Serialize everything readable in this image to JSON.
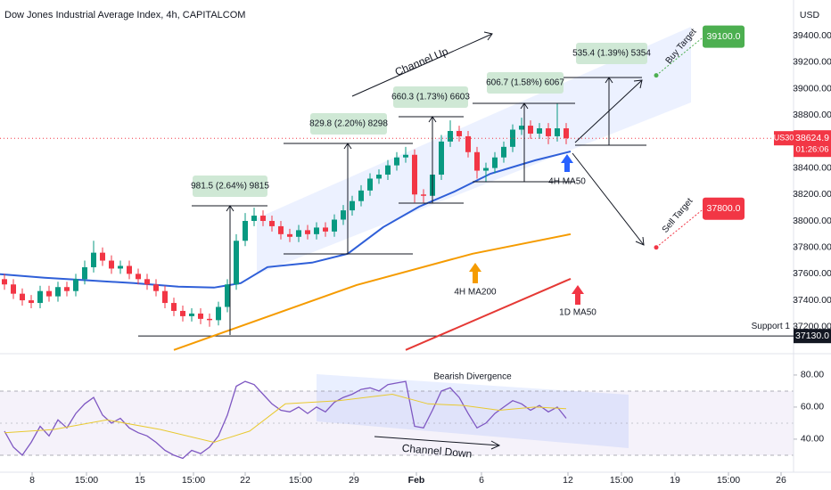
{
  "chart_data": [
    {
      "type": "candlestick",
      "title": "Dow Jones Industrial Average Index, 4h, CAPITALCOM",
      "currency": "USD",
      "symbol_tag": "US30",
      "countdown": "01:26:06",
      "up_color": "#089981",
      "down_color": "#f23645",
      "xlim": [
        0,
        89
      ],
      "xticks": [
        {
          "value": 3.6,
          "label": "8"
        },
        {
          "value": 9.7,
          "label": "15:00"
        },
        {
          "value": 15.7,
          "label": "15"
        },
        {
          "value": 21.7,
          "label": "15:00"
        },
        {
          "value": 27.5,
          "label": "22"
        },
        {
          "value": 33.7,
          "label": "15:00"
        },
        {
          "value": 39.7,
          "label": "29"
        },
        {
          "value": 46.7,
          "label": "Feb"
        },
        {
          "value": 54,
          "label": "6"
        },
        {
          "value": 63.7,
          "label": "12"
        },
        {
          "value": 69.7,
          "label": "15:00"
        },
        {
          "value": 75.7,
          "label": "19"
        },
        {
          "value": 81.7,
          "label": "15:00"
        },
        {
          "value": 87.6,
          "label": "26"
        }
      ],
      "ylim": [
        37010,
        39670
      ],
      "yticks": [
        {
          "value": 39400,
          "label": "39400.00"
        },
        {
          "value": 39200,
          "label": "39200.00"
        },
        {
          "value": 39000,
          "label": "39000.00"
        },
        {
          "value": 38800,
          "label": "38800.00"
        },
        {
          "value": 38600,
          "label": "38600.00"
        },
        {
          "value": 38400,
          "label": "38400.00"
        },
        {
          "value": 38200,
          "label": "38200.00"
        },
        {
          "value": 38000,
          "label": "38000.00"
        },
        {
          "value": 37800,
          "label": "37800.00"
        },
        {
          "value": 37600,
          "label": "37600.00"
        },
        {
          "value": 37400,
          "label": "37400.00"
        },
        {
          "value": 37200,
          "label": "37200.00"
        }
      ],
      "x": [
        0.5,
        1.5,
        2.5,
        3.5,
        4.5,
        5.5,
        6.5,
        7.5,
        8.5,
        9.5,
        10.5,
        11.5,
        12.5,
        13.5,
        14.5,
        15.5,
        16.5,
        17.5,
        18.5,
        19.5,
        20.5,
        21.5,
        22.5,
        23.5,
        24.5,
        25.5,
        26.5,
        27.5,
        28.5,
        29.5,
        30.5,
        31.5,
        32.5,
        33.5,
        34.5,
        35.5,
        36.5,
        37.5,
        38.5,
        39.5,
        40.5,
        41.5,
        42.5,
        43.5,
        44.5,
        45.5,
        46.5,
        47.5,
        48.5,
        49.5,
        50.5,
        51.5,
        52.5,
        53.5,
        54.5,
        55.5,
        56.5,
        57.5,
        58.5,
        59.5,
        60.5,
        61.5,
        62.5,
        63.5
      ],
      "open": [
        37560,
        37520,
        37450,
        37400,
        37380,
        37470,
        37430,
        37500,
        37470,
        37560,
        37650,
        37760,
        37700,
        37640,
        37660,
        37600,
        37560,
        37520,
        37470,
        37380,
        37320,
        37280,
        37300,
        37260,
        37250,
        37350,
        37520,
        37850,
        38000,
        38040,
        38000,
        37960,
        37900,
        37880,
        37930,
        37900,
        37950,
        37920,
        38010,
        38080,
        38150,
        38230,
        38320,
        38350,
        38420,
        38480,
        38500,
        38200,
        38190,
        38350,
        38600,
        38680,
        38640,
        38520,
        38380,
        38400,
        38480,
        38560,
        38690,
        38720,
        38660,
        38700,
        38640,
        38700
      ],
      "high": [
        37600,
        37560,
        37490,
        37440,
        37510,
        37510,
        37540,
        37540,
        37600,
        37700,
        37850,
        37800,
        37740,
        37700,
        37700,
        37640,
        37600,
        37560,
        37510,
        37420,
        37360,
        37340,
        37340,
        37300,
        37390,
        37560,
        37900,
        38060,
        38100,
        38080,
        38040,
        38000,
        37940,
        37970,
        37970,
        37990,
        37990,
        38050,
        38120,
        38190,
        38270,
        38360,
        38390,
        38460,
        38520,
        38560,
        38540,
        38240,
        38390,
        38650,
        38760,
        38720,
        38680,
        38560,
        38440,
        38520,
        38600,
        38730,
        38780,
        38760,
        38740,
        38740,
        38890,
        38740
      ],
      "low": [
        37480,
        37410,
        37360,
        37340,
        37340,
        37390,
        37390,
        37430,
        37430,
        37520,
        37610,
        37660,
        37600,
        37600,
        37560,
        37520,
        37480,
        37430,
        37340,
        37280,
        37240,
        37240,
        37220,
        37200,
        37210,
        37310,
        37480,
        37810,
        37960,
        37960,
        37920,
        37860,
        37840,
        37840,
        37860,
        37860,
        37880,
        37880,
        37970,
        38040,
        38110,
        38190,
        38280,
        38310,
        38380,
        38440,
        38140,
        38140,
        38150,
        38310,
        38560,
        38600,
        38480,
        38320,
        38300,
        38360,
        38440,
        38520,
        38650,
        38620,
        38620,
        38580,
        38600,
        38580
      ],
      "close": [
        37520,
        37450,
        37400,
        37380,
        37470,
        37430,
        37500,
        37470,
        37560,
        37650,
        37760,
        37700,
        37640,
        37660,
        37600,
        37560,
        37520,
        37470,
        37380,
        37320,
        37280,
        37300,
        37260,
        37250,
        37350,
        37520,
        37850,
        38000,
        38040,
        38000,
        37960,
        37900,
        37880,
        37930,
        37900,
        37950,
        37920,
        38010,
        38080,
        38150,
        38230,
        38320,
        38350,
        38420,
        38480,
        38500,
        38200,
        38190,
        38350,
        38600,
        38680,
        38640,
        38520,
        38380,
        38400,
        38480,
        38560,
        38690,
        38720,
        38660,
        38700,
        38640,
        38700,
        38624.9
      ],
      "overlays": [
        {
          "name": "4H MA50",
          "color": "#2f5fd8",
          "x": [
            0,
            5,
            10,
            15,
            20,
            24,
            27,
            30,
            35,
            39,
            43,
            47,
            51,
            55,
            60,
            64
          ],
          "values": [
            37597,
            37570,
            37550,
            37530,
            37503,
            37496,
            37530,
            37651,
            37685,
            37752,
            37954,
            38108,
            38223,
            38357,
            38458,
            38525
          ]
        },
        {
          "name": "4H MA200",
          "color": "#f59b00",
          "x": [
            19.5,
            40,
            53,
            64
          ],
          "values": [
            37025,
            37516,
            37752,
            37900
          ]
        },
        {
          "name": "1D MA50",
          "color": "#e53935",
          "x": [
            45.5,
            64
          ],
          "values": [
            37025,
            37563
          ]
        }
      ],
      "measurements": [
        "981.5 (2.64%) 9815",
        "829.8 (2.20%) 8298",
        "660.3 (1.73%) 6603",
        "606.7 (1.58%) 6067",
        "535.4 (1.39%) 5354"
      ],
      "annotations": [
        "Channel Up",
        "Buy Target",
        "Sell Target"
      ],
      "targets": [
        {
          "value": 39100,
          "label": "39100.0",
          "color": "#4caf50"
        },
        {
          "value": 37800,
          "label": "37800.0",
          "color": "#f23645"
        }
      ],
      "support": {
        "name": "Support 1",
        "value": 37130,
        "label": "37130.0"
      }
    },
    {
      "type": "line",
      "annotations": [
        "Bearish Divergence",
        "Channel Down"
      ],
      "ylim": [
        19.4,
        93.3
      ],
      "yticks": [
        {
          "value": 80,
          "label": "80.00"
        },
        {
          "value": 60,
          "label": "60.00"
        },
        {
          "value": 40,
          "label": "40.00"
        }
      ],
      "series": [
        {
          "color": "#7e57c2",
          "x": [
            0.5,
            1.5,
            2.5,
            3.5,
            4.5,
            5.5,
            6.5,
            7.5,
            8.5,
            9.5,
            10.5,
            11.5,
            12.5,
            13.5,
            14.5,
            15.5,
            16.5,
            17.5,
            18.5,
            19.5,
            20.5,
            21.5,
            22.5,
            23.5,
            24.5,
            25.5,
            26.5,
            27.5,
            28.5,
            29.5,
            30.5,
            31.5,
            32.5,
            33.5,
            34.5,
            35.5,
            36.5,
            37.5,
            38.5,
            39.5,
            40.5,
            41.5,
            42.5,
            43.5,
            44.5,
            45.5,
            46.5,
            47.5,
            48.5,
            49.5,
            50.5,
            51.5,
            52.5,
            53.5,
            54.5,
            55.5,
            56.5,
            57.5,
            58.5,
            59.5,
            60.5,
            61.5,
            62.5,
            63.5
          ],
          "values": [
            45,
            35,
            30,
            38,
            48,
            42,
            52,
            47,
            56,
            62,
            66,
            55,
            50,
            53,
            47,
            44,
            42,
            38,
            33,
            30,
            28,
            33,
            31,
            35,
            42,
            55,
            73,
            76,
            74,
            68,
            62,
            58,
            57,
            60,
            56,
            60,
            57,
            63,
            66,
            68,
            71,
            72,
            70,
            74,
            75,
            76,
            48,
            47,
            58,
            70,
            72,
            66,
            56,
            47,
            50,
            56,
            60,
            64,
            62,
            58,
            61,
            57,
            60,
            53
          ]
        },
        {
          "color": "#e8c930",
          "x": [
            0.5,
            6,
            12,
            18,
            24,
            28,
            32,
            38,
            44,
            48,
            52,
            56,
            60,
            63.5
          ],
          "values": [
            44,
            46,
            52,
            46,
            38,
            45,
            62,
            64,
            68,
            62,
            61,
            58,
            60,
            59
          ]
        }
      ]
    }
  ]
}
